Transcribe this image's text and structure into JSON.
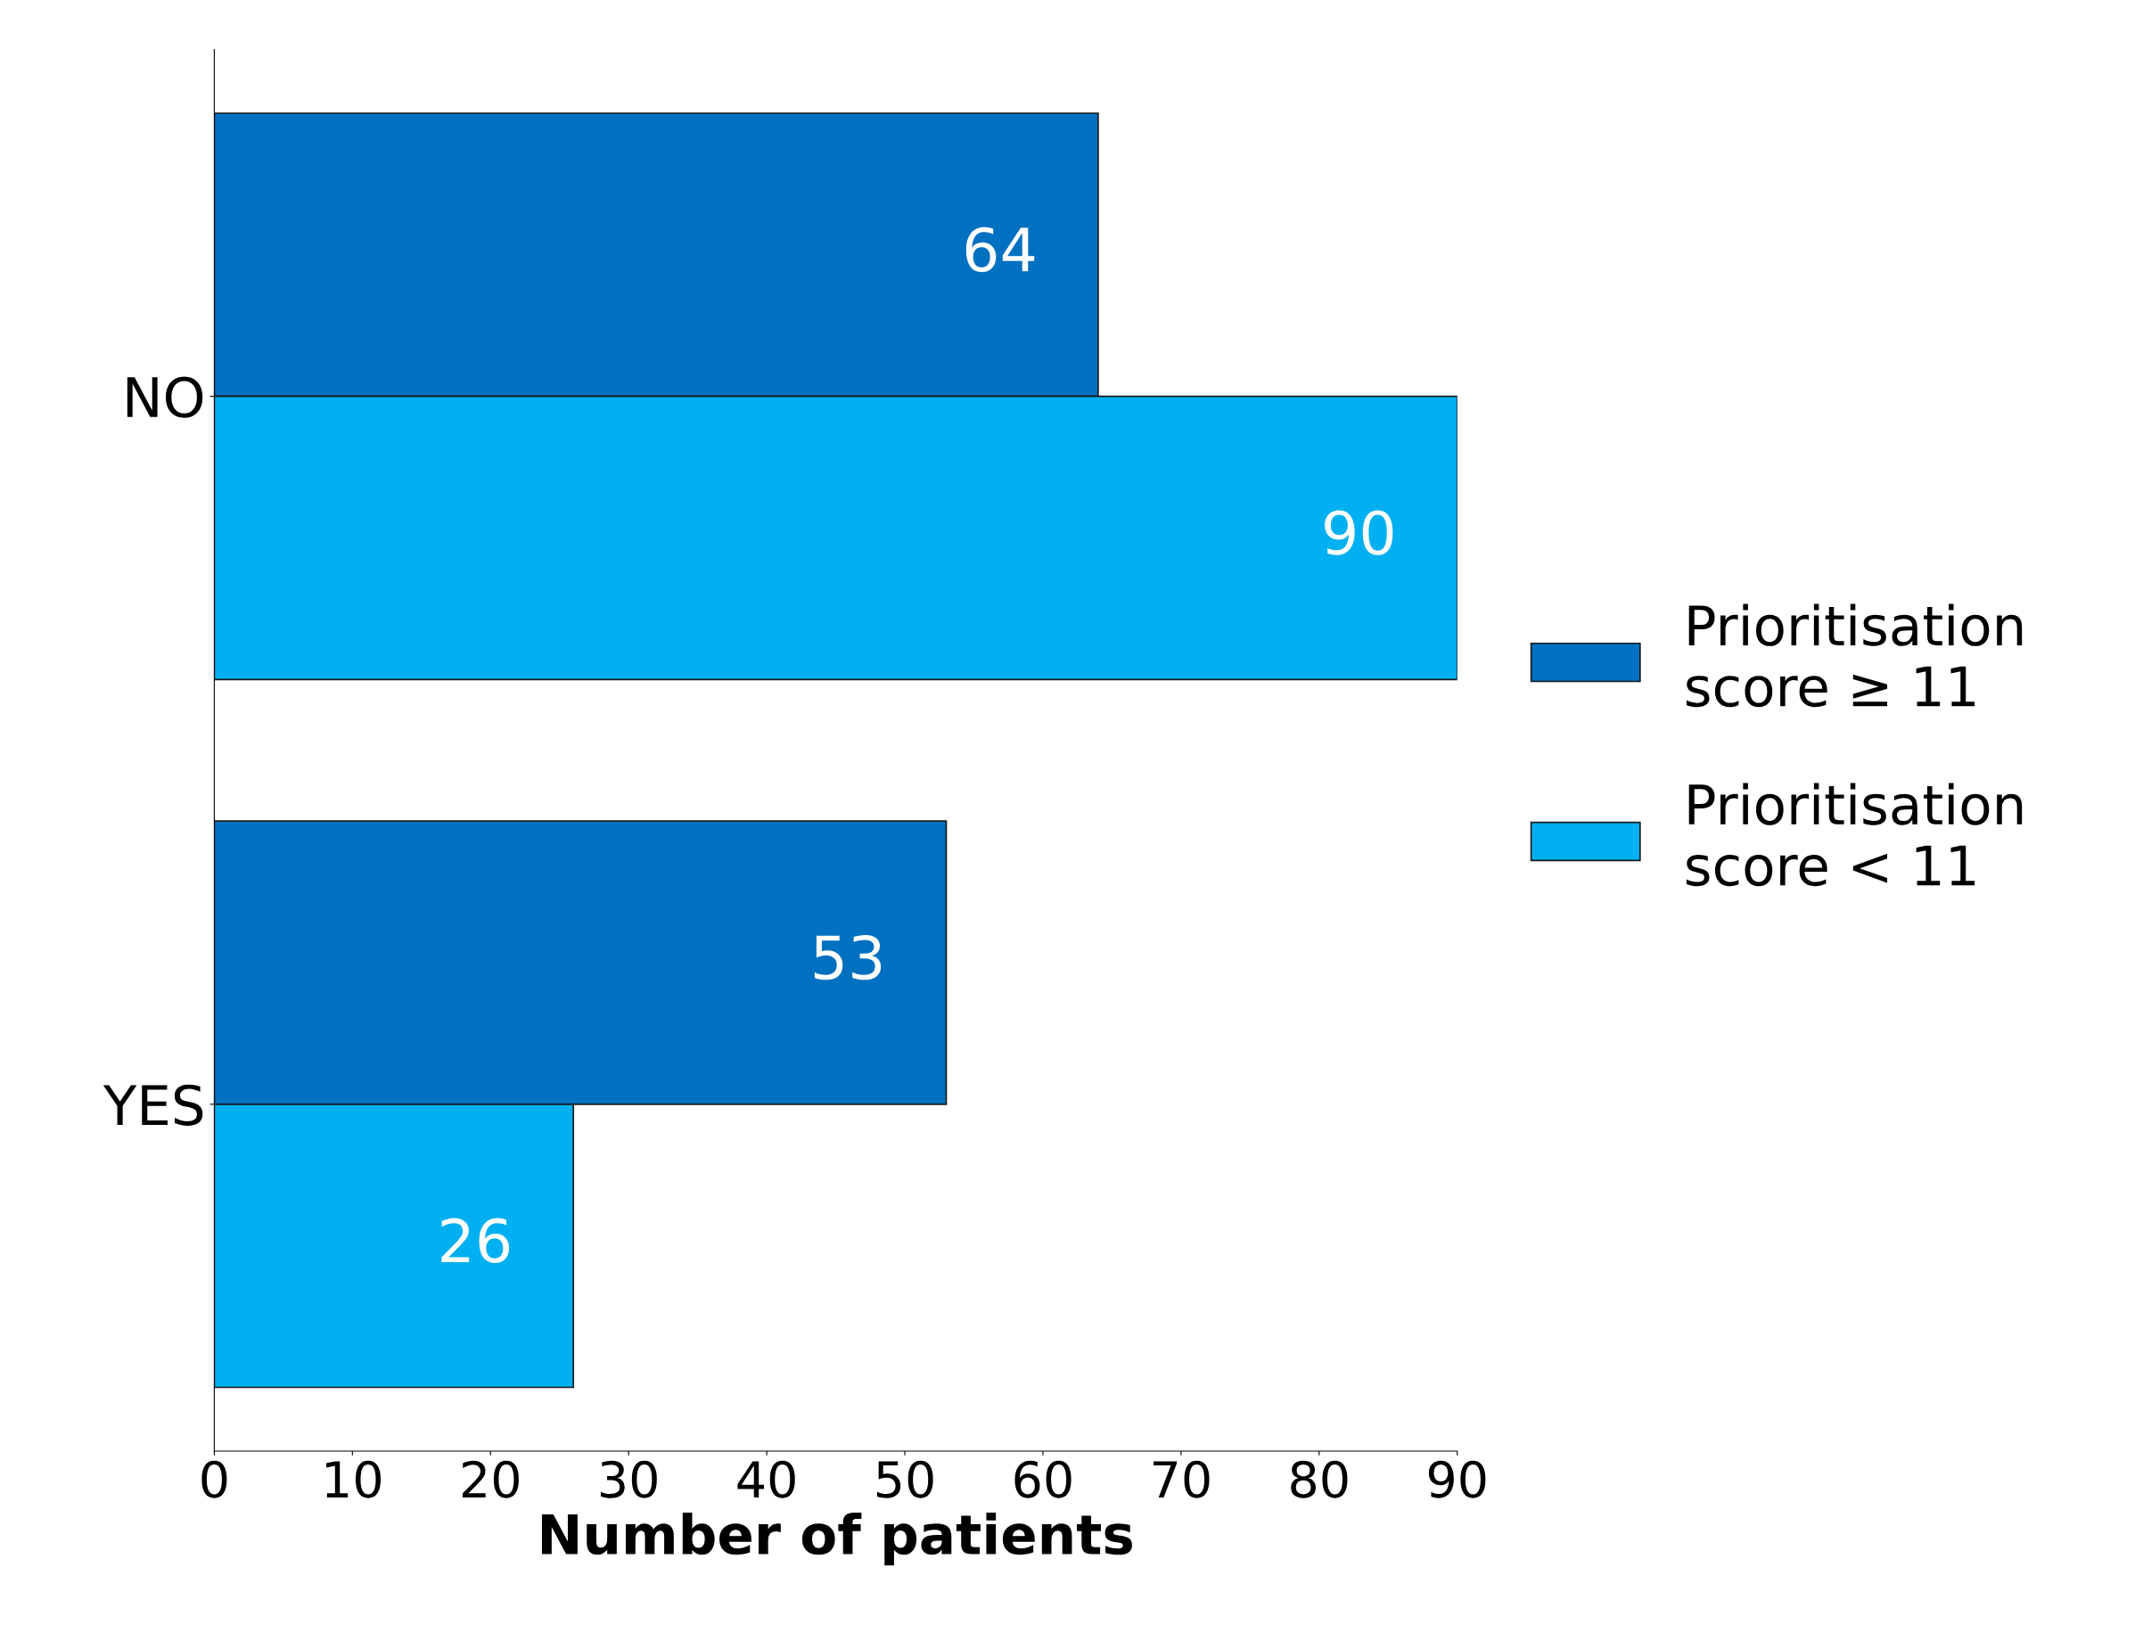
{
  "chart_data": {
    "type": "bar",
    "orientation": "horizontal",
    "xlabel": "Number of patients",
    "categories": [
      "NO",
      "YES"
    ],
    "series": [
      {
        "name": "Prioritisation score ≥ 11",
        "color": "#0070c0",
        "values": [
          64,
          53
        ]
      },
      {
        "name": "Prioritisation score < 11",
        "color": "#00b0f0",
        "values": [
          90,
          26
        ]
      }
    ],
    "xlim": [
      0,
      90
    ],
    "xticks": [
      0,
      10,
      20,
      30,
      40,
      50,
      60,
      70,
      80,
      90
    ],
    "data_labels": true,
    "legend": "right",
    "grid": false
  }
}
